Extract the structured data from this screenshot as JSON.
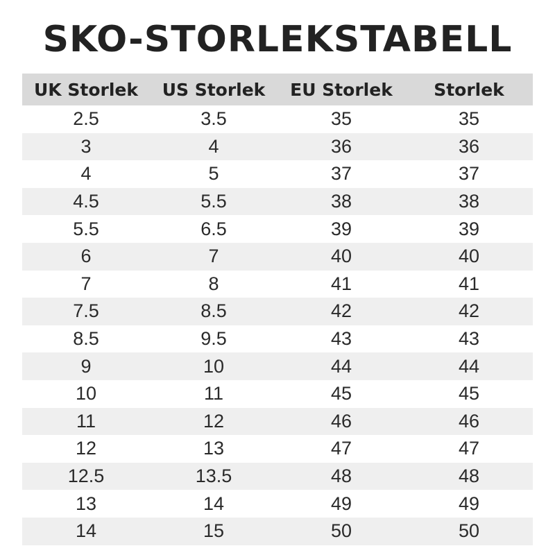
{
  "title": "SKO-STORLEKSTABELL",
  "table": {
    "headers": [
      "UK Storlek",
      "US Storlek",
      "EU Storlek",
      "Storlek"
    ],
    "rows": [
      [
        "2.5",
        "3.5",
        "35",
        "35"
      ],
      [
        "3",
        "4",
        "36",
        "36"
      ],
      [
        "4",
        "5",
        "37",
        "37"
      ],
      [
        "4.5",
        "5.5",
        "38",
        "38"
      ],
      [
        "5.5",
        "6.5",
        "39",
        "39"
      ],
      [
        "6",
        "7",
        "40",
        "40"
      ],
      [
        "7",
        "8",
        "41",
        "41"
      ],
      [
        "7.5",
        "8.5",
        "42",
        "42"
      ],
      [
        "8.5",
        "9.5",
        "43",
        "43"
      ],
      [
        "9",
        "10",
        "44",
        "44"
      ],
      [
        "10",
        "11",
        "45",
        "45"
      ],
      [
        "11",
        "12",
        "46",
        "46"
      ],
      [
        "12",
        "13",
        "47",
        "47"
      ],
      [
        "12.5",
        "13.5",
        "48",
        "48"
      ],
      [
        "13",
        "14",
        "49",
        "49"
      ],
      [
        "14",
        "15",
        "50",
        "50"
      ]
    ]
  },
  "colors": {
    "header_bg": "#d9d9d9",
    "stripe_bg": "#efefef",
    "text": "#2a2a2a"
  }
}
